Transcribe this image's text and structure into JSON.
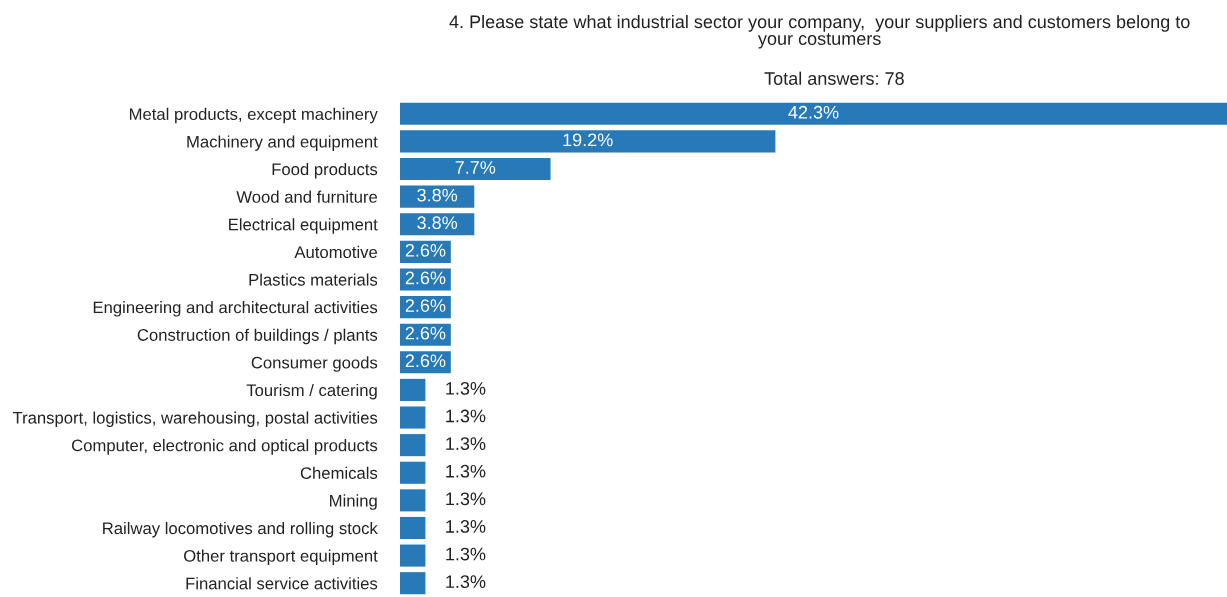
{
  "chart_data": {
    "type": "bar",
    "orientation": "horizontal",
    "title": "4. Please state what industrial sector your company,  your suppliers and customers belong to\nyour costumers",
    "subtitle": "Total answers: 78",
    "categories": [
      "Metal products, except machinery",
      "Machinery and equipment",
      "Food products",
      "Wood and furniture",
      "Electrical equipment",
      "Automotive",
      "Plastics materials",
      "Engineering and architectural activities",
      "Construction of buildings / plants",
      "Consumer goods",
      "Tourism / catering",
      "Transport, logistics, warehousing, postal activities",
      "Computer, electronic and optical products",
      "Chemicals",
      "Mining",
      "Railway locomotives and rolling stock",
      "Other transport equipment",
      "Financial service activities"
    ],
    "values": [
      42.3,
      19.2,
      7.7,
      3.8,
      3.8,
      2.6,
      2.6,
      2.6,
      2.6,
      2.6,
      1.3,
      1.3,
      1.3,
      1.3,
      1.3,
      1.3,
      1.3,
      1.3
    ],
    "value_labels": [
      "42.3%",
      "19.2%",
      "7.7%",
      "3.8%",
      "3.8%",
      "2.6%",
      "2.6%",
      "2.6%",
      "2.6%",
      "2.6%",
      "1.3%",
      "1.3%",
      "1.3%",
      "1.3%",
      "1.3%",
      "1.3%",
      "1.3%",
      "1.3%"
    ],
    "color": "#2779b8",
    "tick_labels": "y",
    "grid": false,
    "legend": false
  }
}
